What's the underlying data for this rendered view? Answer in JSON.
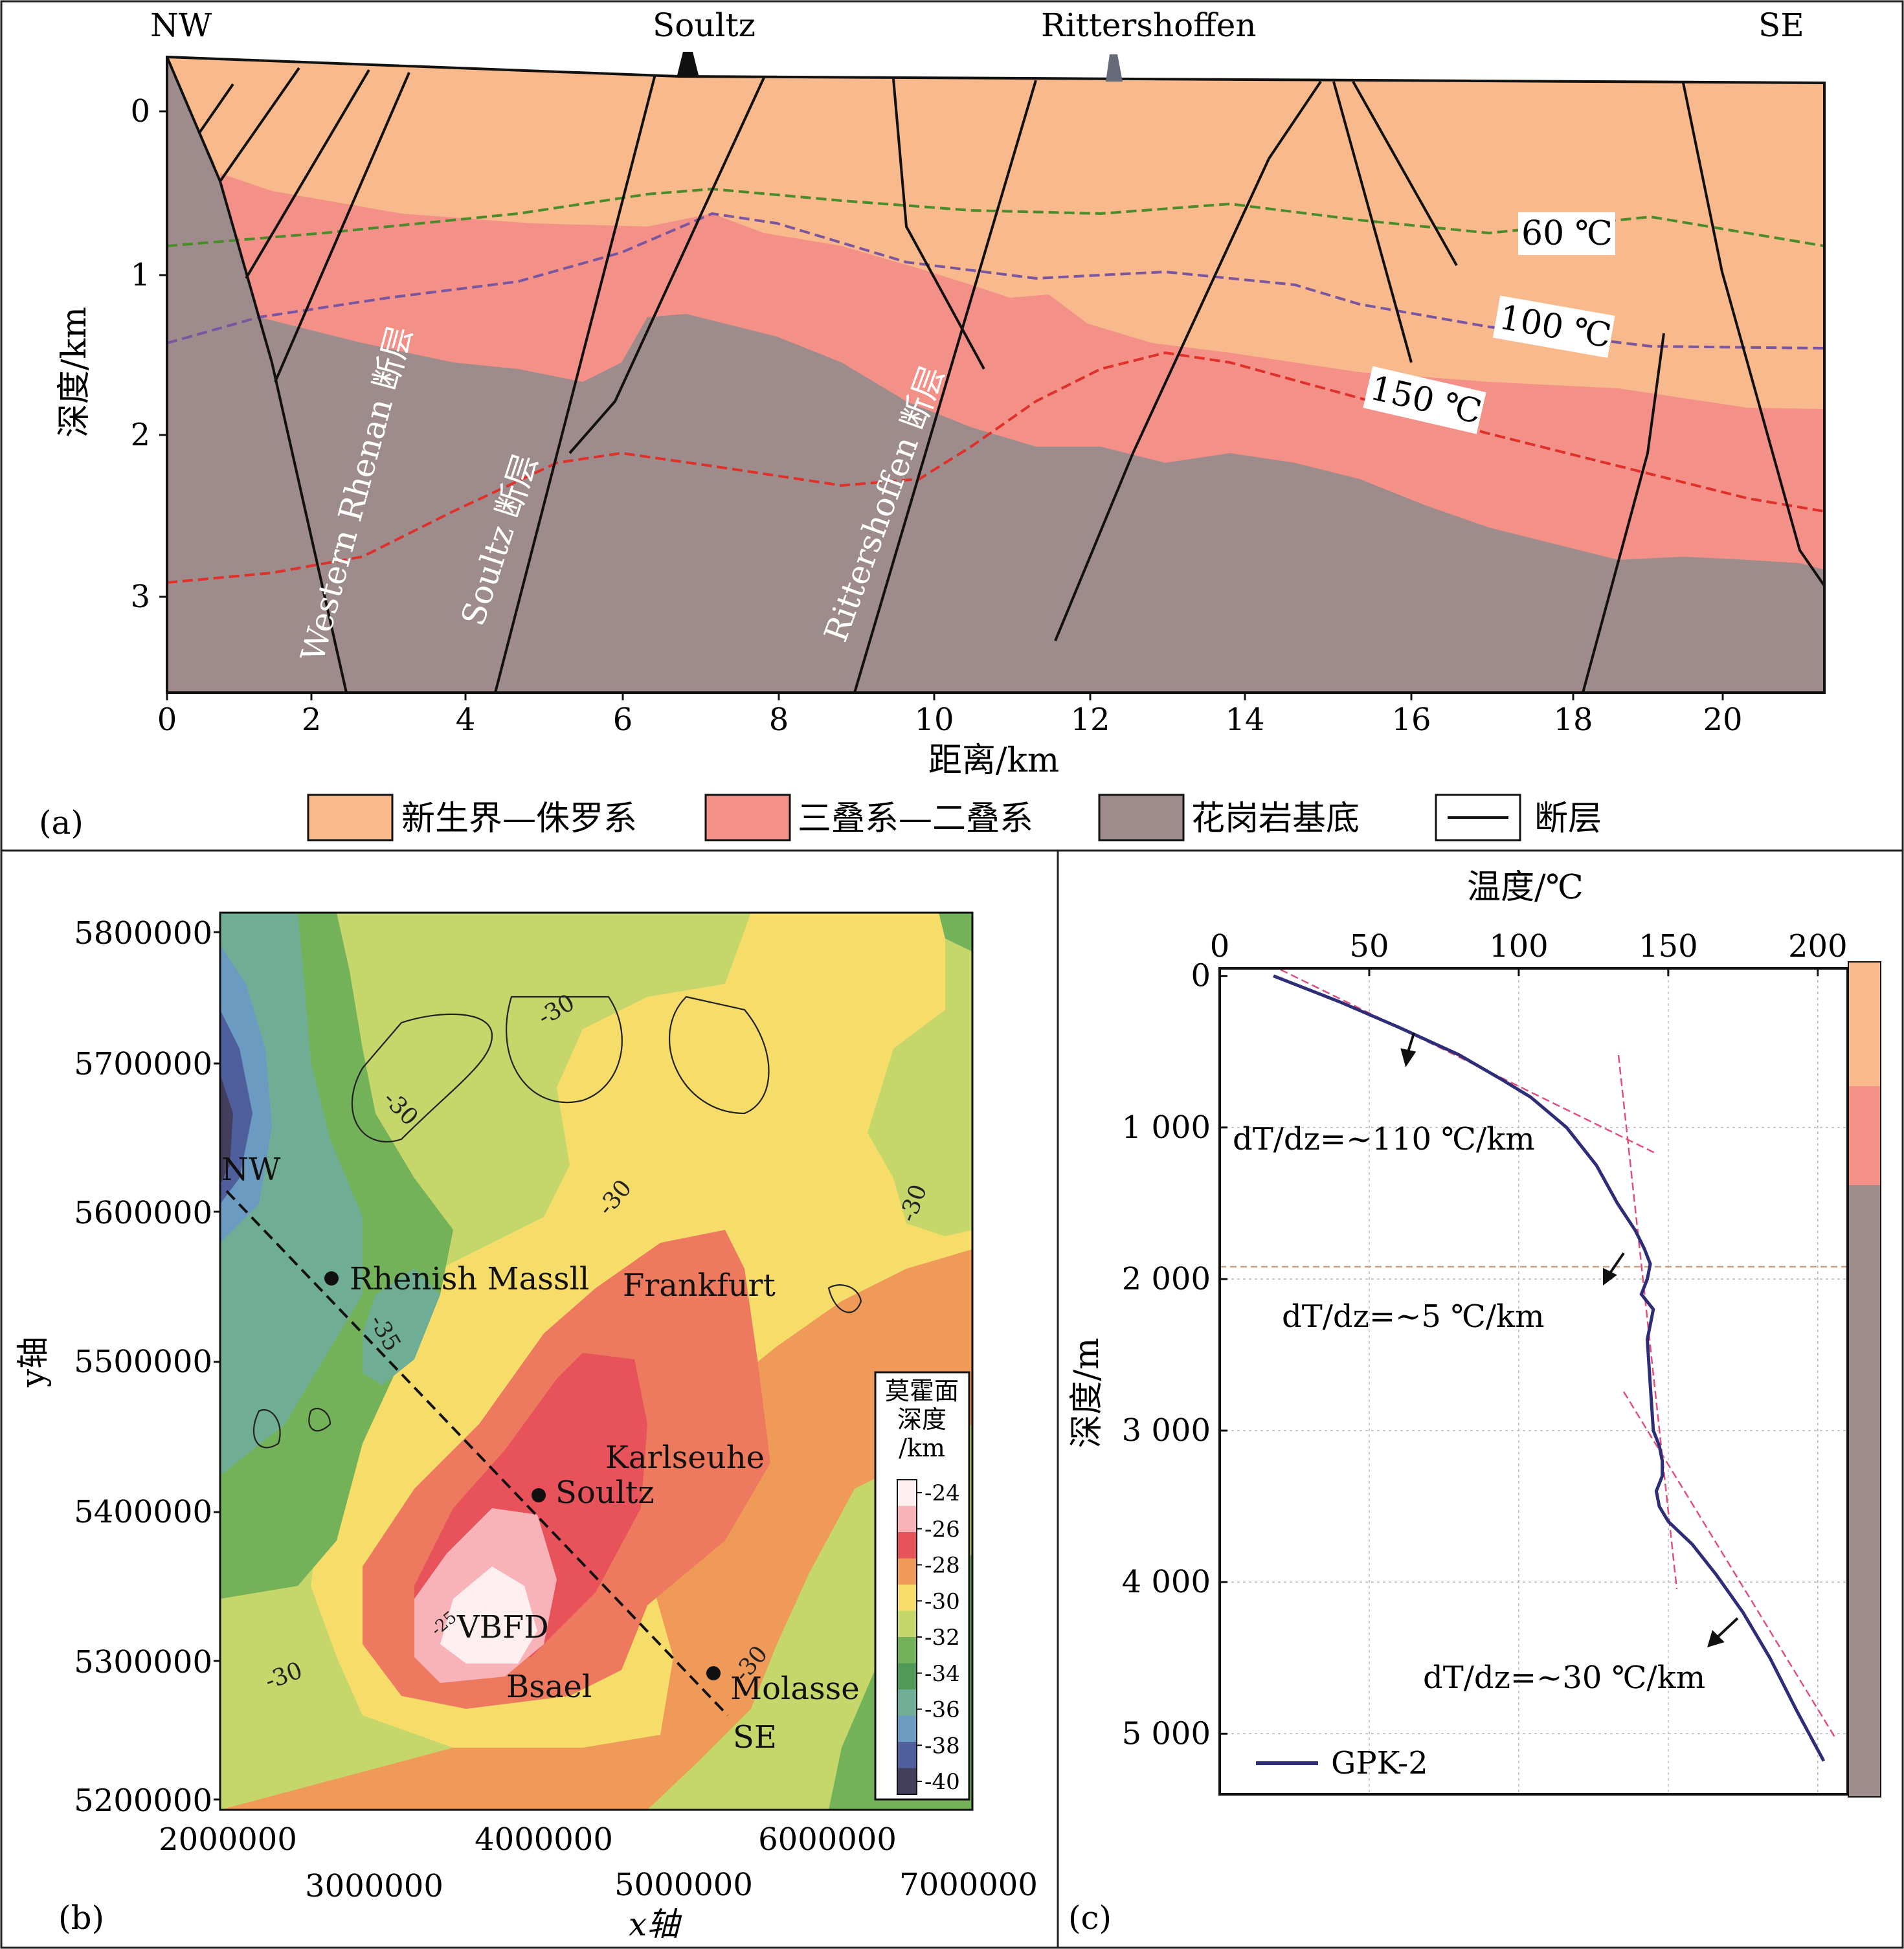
{
  "figure": {
    "panel_a": {
      "label": "(a)",
      "locations": {
        "nw": "NW",
        "soultz": "Soultz",
        "rittershoffen": "Rittershoffen",
        "se": "SE"
      },
      "ylabel": "深度/km",
      "xlabel": "距离/km",
      "x_ticks": [
        "0",
        "2",
        "4",
        "6",
        "8",
        "10",
        "12",
        "14",
        "16",
        "18",
        "20"
      ],
      "y_ticks": [
        "0",
        "1",
        "2",
        "3"
      ],
      "isotherms": {
        "t60": "60 ℃",
        "t100": "100 ℃",
        "t150": "150 ℃"
      },
      "fault_names": {
        "western_rhenan": "Western Rhenan 断层",
        "soultz": "Soultz 断层",
        "rittershoffen": "Rittershoffen 断层"
      },
      "legend": {
        "cenozoic": "新生界—侏罗系",
        "triassic": "三叠系—二叠系",
        "granite": "花岗岩基底",
        "fault": "断层"
      },
      "colors": {
        "cenozoic": "#f8b98c",
        "triassic": "#f39088",
        "granite": "#9e8b8b",
        "iso60": "#4a8b2a",
        "iso100": "#7a55a0",
        "iso150": "#e0302a"
      }
    },
    "panel_b": {
      "label": "(b)",
      "ylabel": "y轴",
      "xlabel": "x轴",
      "x_ticks_upper": [
        "2000000",
        "4000000",
        "6000000"
      ],
      "x_ticks_lower": [
        "3000000",
        "5000000",
        "7000000"
      ],
      "y_ticks": [
        "5800000",
        "5700000",
        "5600000",
        "5500000",
        "5400000",
        "5300000",
        "5200000"
      ],
      "places": {
        "rhenish": "Rhenish Massll",
        "frankfurt": "Frankfurt",
        "karlseuhe": "Karlseuhe",
        "soultz": "Soultz",
        "vbfd": "VBFD",
        "bsael": "Bsael",
        "molasse": "Molasse",
        "nw": "NW",
        "se": "SE"
      },
      "contour_labels": {
        "c30": "-30",
        "c35": "-35",
        "c25": "-25"
      },
      "legend_title": [
        "莫霍面",
        "深度",
        "/km"
      ],
      "legend_values": [
        "-24",
        "-26",
        "-28",
        "-30",
        "-32",
        "-34",
        "-36",
        "-38",
        "-40"
      ],
      "legend_colors": [
        "#fdeef0",
        "#f7b3b8",
        "#e8525a",
        "#f09a5a",
        "#f6dd6a",
        "#c5d66a",
        "#74b25a",
        "#4f9a58",
        "#6fae95",
        "#6c9bc2",
        "#4f5e9c",
        "#433e5c"
      ]
    },
    "panel_c": {
      "label": "(c)",
      "xlabel": "温度/℃",
      "ylabel": "深度/m",
      "x_ticks": [
        "0",
        "50",
        "100",
        "150",
        "200"
      ],
      "y_ticks": [
        "0",
        "1 000",
        "2 000",
        "3 000",
        "4 000",
        "5 000"
      ],
      "gradients": {
        "g1": "dT/dz=~110 ℃/km",
        "g2": "dT/dz=~5 ℃/km",
        "g3": "dT/dz=~30 ℃/km"
      },
      "legend": "GPK-2",
      "colors": {
        "curve": "#2e2d78",
        "fit": "#e0507a"
      },
      "chart_data": {
        "type": "line",
        "xlabel": "温度/℃",
        "ylabel": "深度/m",
        "xlim": [
          0,
          210
        ],
        "ylim": [
          5400,
          0
        ],
        "series": [
          {
            "name": "GPK-2",
            "x": [
              18,
              40,
              60,
              80,
              94,
              104,
              116,
              126,
              133,
              139,
              142,
              144,
              143,
              141,
              145,
              143,
              144,
              145,
              147,
              148,
              148,
              146,
              147,
              150,
              158,
              166,
              175,
              184,
              193,
              202
            ],
            "y": [
              0,
              170,
              340,
              520,
              680,
              800,
              1000,
              1250,
              1500,
              1680,
              1800,
              1900,
              2000,
              2100,
              2200,
              2400,
              2700,
              3000,
              3100,
              3200,
              3300,
              3400,
              3500,
              3600,
              3750,
              3950,
              4200,
              4500,
              4850,
              5180
            ]
          }
        ]
      }
    }
  }
}
